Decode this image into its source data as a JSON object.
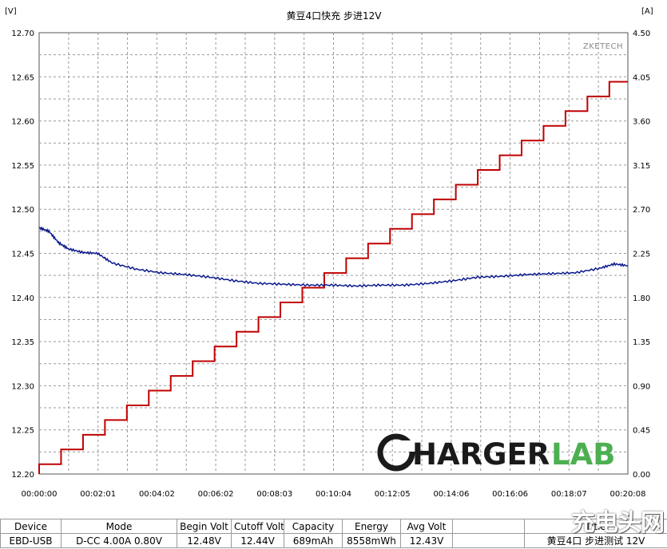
{
  "chart_data": {
    "type": "line",
    "title": "黄豆4口快充 步进12V",
    "watermark": "ZKETECH",
    "brand": {
      "part1": "HARGER",
      "part2": "LAB",
      "color1": "#1a1a1a",
      "color2": "#4caf50"
    },
    "y_left": {
      "unit": "[V]",
      "range": [
        12.2,
        12.7
      ],
      "ticks": [
        "12.70",
        "12.65",
        "12.60",
        "12.55",
        "12.50",
        "12.45",
        "12.40",
        "12.35",
        "12.30",
        "12.25",
        "12.20"
      ]
    },
    "y_right": {
      "unit": "[A]",
      "range": [
        0,
        4.5
      ],
      "ticks": [
        "4.50",
        "4.05",
        "3.60",
        "3.15",
        "2.70",
        "2.25",
        "1.80",
        "1.35",
        "0.90",
        "0.45",
        "0.00"
      ]
    },
    "x_ticks": [
      "00:00:00",
      "00:02:01",
      "00:04:02",
      "00:06:02",
      "00:08:03",
      "00:10:04",
      "00:12:05",
      "00:14:06",
      "00:16:06",
      "00:18:07",
      "00:20:08"
    ],
    "x_range_s": [
      0,
      1208
    ],
    "grid": true,
    "series": [
      {
        "axis": "left",
        "color": "#0b1a8c",
        "x": [
          0,
          20,
          40,
          60,
          90,
          120,
          150,
          200,
          250,
          300,
          350,
          400,
          450,
          500,
          550,
          600,
          650,
          700,
          750,
          800,
          850,
          900,
          950,
          1000,
          1050,
          1100,
          1150,
          1180,
          1208
        ],
        "y": [
          12.479,
          12.475,
          12.462,
          12.455,
          12.451,
          12.45,
          12.439,
          12.432,
          12.428,
          12.426,
          12.423,
          12.419,
          12.416,
          12.415,
          12.414,
          12.414,
          12.413,
          12.414,
          12.414,
          12.416,
          12.419,
          12.423,
          12.424,
          12.426,
          12.427,
          12.428,
          12.433,
          12.438,
          12.436
        ]
      },
      {
        "axis": "right",
        "color": "#c00000",
        "steps_x": [
          0,
          45,
          90,
          135,
          180,
          225,
          270,
          315,
          360,
          405,
          450,
          495,
          540,
          585,
          630,
          675,
          720,
          765,
          810,
          855,
          900,
          945,
          990,
          1035,
          1080,
          1125,
          1170,
          1208
        ],
        "steps_y": [
          0.1,
          0.25,
          0.4,
          0.55,
          0.7,
          0.85,
          1.0,
          1.15,
          1.3,
          1.45,
          1.6,
          1.75,
          1.9,
          2.05,
          2.2,
          2.35,
          2.5,
          2.65,
          2.8,
          2.95,
          3.1,
          3.25,
          3.4,
          3.55,
          3.7,
          3.85,
          4.0,
          4.0
        ]
      }
    ]
  },
  "table": {
    "headers": [
      "Device",
      "Mode",
      "Begin Volt",
      "Cutoff Volt",
      "Capacity",
      "Energy",
      "Avg Volt",
      "",
      "Title"
    ],
    "values": [
      "EBD-USB",
      "D-CC  4.00A  0.80V",
      "12.48V",
      "12.44V",
      "689mAh",
      "8558mWh",
      "12.43V",
      "",
      "黄豆4口 步进测试 12V"
    ]
  },
  "corner_logo": "充电头网"
}
